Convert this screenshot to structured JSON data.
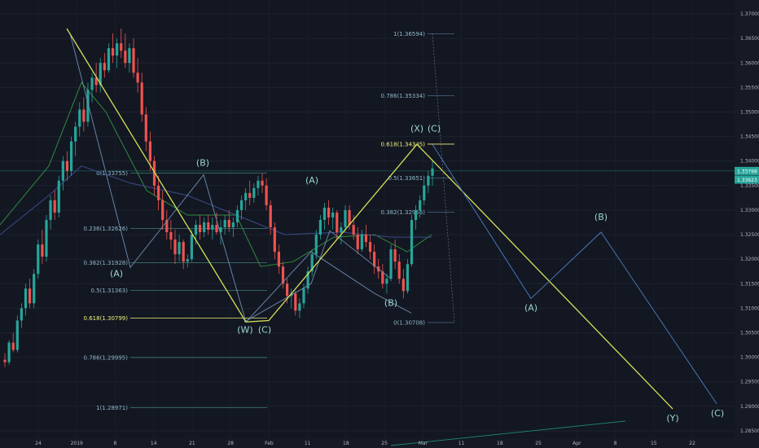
{
  "colors": {
    "background": "#131722",
    "up_candle": "#26a69a",
    "down_candle": "#ef5350",
    "wave_line": "#d4e157",
    "fib_line": "#5b8a8a",
    "fib_highlight": "#ecf17c",
    "projection_line": "#4a7fbf",
    "wave_label": "#9ad6d0",
    "ma_green": "#2e8b3e",
    "ma_blue": "#3b4a8c"
  },
  "chart_data": {
    "type": "candlestick",
    "instrument_note": "",
    "x_axis": {
      "tick_labels": [
        "24",
        "2019",
        "8",
        "14",
        "21",
        "28",
        "Feb",
        "11",
        "18",
        "25",
        "Mar",
        "11",
        "18",
        "25",
        "Apr",
        "8",
        "15",
        "22"
      ]
    },
    "y_axis": {
      "range": [
        1.2835,
        1.3715
      ],
      "tick_labels": [
        "1.37000",
        "1.36500",
        "1.36000",
        "1.35500",
        "1.35000",
        "1.34500",
        "1.34000",
        "1.33500",
        "1.33000",
        "1.32500",
        "1.32000",
        "1.31500",
        "1.31000",
        "1.30500",
        "1.30000",
        "1.29500",
        "1.29000",
        "1.28500"
      ],
      "tick_values": [
        1.37,
        1.365,
        1.36,
        1.355,
        1.35,
        1.345,
        1.34,
        1.335,
        1.33,
        1.325,
        1.32,
        1.315,
        1.31,
        1.305,
        1.3,
        1.295,
        1.29,
        1.285
      ]
    },
    "current_price_labels": [
      "1.33798",
      "1.33623"
    ],
    "candles": [
      [
        1.2995,
        1.3008,
        1.298,
        1.299
      ],
      [
        1.299,
        1.3035,
        1.2985,
        1.303
      ],
      [
        1.303,
        1.305,
        1.301,
        1.3015
      ],
      [
        1.3015,
        1.3085,
        1.301,
        1.3075
      ],
      [
        1.3075,
        1.311,
        1.306,
        1.31
      ],
      [
        1.31,
        1.315,
        1.3085,
        1.314
      ],
      [
        1.314,
        1.316,
        1.31,
        1.311
      ],
      [
        1.311,
        1.318,
        1.31,
        1.317
      ],
      [
        1.317,
        1.324,
        1.316,
        1.323
      ],
      [
        1.323,
        1.326,
        1.319,
        1.3205
      ],
      [
        1.3205,
        1.329,
        1.3195,
        1.328
      ],
      [
        1.328,
        1.333,
        1.326,
        1.332
      ],
      [
        1.332,
        1.334,
        1.328,
        1.3295
      ],
      [
        1.3295,
        1.337,
        1.3285,
        1.336
      ],
      [
        1.336,
        1.341,
        1.334,
        1.34
      ],
      [
        1.34,
        1.342,
        1.336,
        1.338
      ],
      [
        1.338,
        1.345,
        1.337,
        1.344
      ],
      [
        1.344,
        1.348,
        1.341,
        1.347
      ],
      [
        1.347,
        1.352,
        1.345,
        1.3505
      ],
      [
        1.3505,
        1.353,
        1.346,
        1.348
      ],
      [
        1.348,
        1.356,
        1.347,
        1.3545
      ],
      [
        1.3545,
        1.358,
        1.352,
        1.357
      ],
      [
        1.357,
        1.36,
        1.354,
        1.3555
      ],
      [
        1.3555,
        1.361,
        1.354,
        1.36
      ],
      [
        1.36,
        1.362,
        1.357,
        1.3585
      ],
      [
        1.3585,
        1.364,
        1.358,
        1.363
      ],
      [
        1.363,
        1.366,
        1.36,
        1.3615
      ],
      [
        1.3615,
        1.365,
        1.359,
        1.364
      ],
      [
        1.364,
        1.367,
        1.361,
        1.3625
      ],
      [
        1.3625,
        1.366,
        1.359,
        1.36
      ],
      [
        1.36,
        1.364,
        1.358,
        1.363
      ],
      [
        1.363,
        1.365,
        1.357,
        1.358
      ],
      [
        1.358,
        1.361,
        1.354,
        1.356
      ],
      [
        1.356,
        1.358,
        1.348,
        1.3495
      ],
      [
        1.3495,
        1.351,
        1.342,
        1.344
      ],
      [
        1.344,
        1.346,
        1.338,
        1.34
      ],
      [
        1.34,
        1.341,
        1.333,
        1.335
      ],
      [
        1.335,
        1.337,
        1.33,
        1.332
      ],
      [
        1.332,
        1.334,
        1.326,
        1.328
      ],
      [
        1.328,
        1.33,
        1.324,
        1.3255
      ],
      [
        1.3255,
        1.328,
        1.322,
        1.324
      ],
      [
        1.324,
        1.326,
        1.319,
        1.321
      ],
      [
        1.321,
        1.325,
        1.3195,
        1.3235
      ],
      [
        1.3235,
        1.324,
        1.318,
        1.3195
      ],
      [
        1.3195,
        1.321,
        1.3183,
        1.32
      ],
      [
        1.32,
        1.326,
        1.3195,
        1.325
      ],
      [
        1.325,
        1.328,
        1.323,
        1.327
      ],
      [
        1.327,
        1.329,
        1.324,
        1.3255
      ],
      [
        1.3255,
        1.3285,
        1.3245,
        1.3275
      ],
      [
        1.3275,
        1.329,
        1.325,
        1.326
      ],
      [
        1.326,
        1.3285,
        1.324,
        1.327
      ],
      [
        1.327,
        1.3295,
        1.325,
        1.3255
      ],
      [
        1.3255,
        1.328,
        1.323,
        1.3265
      ],
      [
        1.3265,
        1.329,
        1.325,
        1.328
      ],
      [
        1.328,
        1.33,
        1.3255,
        1.3265
      ],
      [
        1.3265,
        1.3285,
        1.3245,
        1.3275
      ],
      [
        1.3275,
        1.331,
        1.3265,
        1.33
      ],
      [
        1.33,
        1.333,
        1.328,
        1.332
      ],
      [
        1.332,
        1.3345,
        1.33,
        1.3335
      ],
      [
        1.3335,
        1.336,
        1.331,
        1.3325
      ],
      [
        1.3325,
        1.3355,
        1.3315,
        1.3345
      ],
      [
        1.3345,
        1.337,
        1.333,
        1.336
      ],
      [
        1.336,
        1.3375,
        1.3335,
        1.335
      ],
      [
        1.335,
        1.3365,
        1.33,
        1.331
      ],
      [
        1.331,
        1.332,
        1.325,
        1.3265
      ],
      [
        1.3265,
        1.3275,
        1.32,
        1.3215
      ],
      [
        1.3215,
        1.323,
        1.317,
        1.3185
      ],
      [
        1.3185,
        1.3195,
        1.314,
        1.315
      ],
      [
        1.315,
        1.316,
        1.311,
        1.3125
      ],
      [
        1.3125,
        1.314,
        1.31,
        1.313
      ],
      [
        1.313,
        1.3135,
        1.3085,
        1.3095
      ],
      [
        1.3095,
        1.312,
        1.308,
        1.311
      ],
      [
        1.311,
        1.315,
        1.31,
        1.314
      ],
      [
        1.314,
        1.3185,
        1.313,
        1.3175
      ],
      [
        1.3175,
        1.322,
        1.3165,
        1.321
      ],
      [
        1.321,
        1.326,
        1.32,
        1.325
      ],
      [
        1.325,
        1.329,
        1.324,
        1.328
      ],
      [
        1.328,
        1.3315,
        1.326,
        1.3305
      ],
      [
        1.3305,
        1.332,
        1.327,
        1.3285
      ],
      [
        1.3285,
        1.3305,
        1.326,
        1.3295
      ],
      [
        1.3295,
        1.33,
        1.324,
        1.3255
      ],
      [
        1.3255,
        1.3275,
        1.323,
        1.3265
      ],
      [
        1.3265,
        1.331,
        1.3255,
        1.33
      ],
      [
        1.33,
        1.331,
        1.326,
        1.327
      ],
      [
        1.327,
        1.329,
        1.324,
        1.325
      ],
      [
        1.325,
        1.3265,
        1.321,
        1.322
      ],
      [
        1.322,
        1.326,
        1.3215,
        1.325
      ],
      [
        1.325,
        1.327,
        1.3225,
        1.3235
      ],
      [
        1.3235,
        1.325,
        1.32,
        1.3215
      ],
      [
        1.3215,
        1.323,
        1.317,
        1.3185
      ],
      [
        1.3185,
        1.32,
        1.316,
        1.3175
      ],
      [
        1.3175,
        1.319,
        1.314,
        1.315
      ],
      [
        1.315,
        1.317,
        1.313,
        1.316
      ],
      [
        1.316,
        1.323,
        1.3155,
        1.322
      ],
      [
        1.322,
        1.324,
        1.318,
        1.3195
      ],
      [
        1.3195,
        1.321,
        1.315,
        1.316
      ],
      [
        1.316,
        1.318,
        1.312,
        1.3135
      ],
      [
        1.3135,
        1.32,
        1.313,
        1.319
      ],
      [
        1.319,
        1.329,
        1.3185,
        1.328
      ],
      [
        1.328,
        1.331,
        1.326,
        1.33
      ],
      [
        1.33,
        1.333,
        1.3285,
        1.332
      ],
      [
        1.332,
        1.336,
        1.331,
        1.335
      ],
      [
        1.335,
        1.338,
        1.3335,
        1.337
      ],
      [
        1.337,
        1.34,
        1.335,
        1.3385
      ]
    ],
    "candle_window": {
      "first_x": 6,
      "last_x": 531
    },
    "wave_lines": [
      {
        "points": [
          [
            82,
            1.367
          ],
          [
            302,
            1.3072
          ],
          [
            330,
            1.3075
          ],
          [
            512,
            1.3434
          ]
        ]
      },
      {
        "points": [
          [
            512,
            1.3434
          ],
          [
            826,
            1.2895
          ]
        ]
      }
    ],
    "structure_lines": [
      {
        "points": [
          [
            86,
            1.366
          ],
          [
            160,
            1.3183
          ],
          [
            250,
            1.3372
          ],
          [
            302,
            1.3072
          ]
        ]
      },
      {
        "points": [
          [
            302,
            1.3072
          ],
          [
            382,
            1.3215
          ],
          [
            460,
            1.313
          ],
          [
            505,
            1.309
          ]
        ]
      },
      {
        "points": [
          [
            300,
            1.3072
          ],
          [
            382,
            1.315
          ],
          [
            405,
            1.3258
          ],
          [
            480,
            1.316
          ]
        ]
      }
    ],
    "projection_lines": [
      {
        "points": [
          [
            531,
            1.3434
          ],
          [
            652,
            1.312
          ],
          [
            738,
            1.3255
          ],
          [
            880,
            1.2905
          ]
        ]
      }
    ],
    "trend_line": {
      "points": [
        [
          480,
          1.282
        ],
        [
          768,
          1.287
        ]
      ]
    },
    "wave_labels": [
      {
        "text": "(B)",
        "x": 249,
        "y": 1.339
      },
      {
        "text": "(A)",
        "x": 143,
        "y": 1.3165
      },
      {
        "text": "(W)",
        "x": 301,
        "y": 1.305
      },
      {
        "text": "(C)",
        "x": 325,
        "y": 1.305
      },
      {
        "text": "(A)",
        "x": 383,
        "y": 1.3355
      },
      {
        "text": "(B)",
        "x": 480,
        "y": 1.3105
      },
      {
        "text": "(X)",
        "x": 512,
        "y": 1.346
      },
      {
        "text": "(C)",
        "x": 533,
        "y": 1.346
      },
      {
        "text": "(A)",
        "x": 652,
        "y": 1.3095
      },
      {
        "text": "(B)",
        "x": 738,
        "y": 1.328
      },
      {
        "text": "(Y)",
        "x": 826,
        "y": 1.287
      },
      {
        "text": "(C)",
        "x": 881,
        "y": 1.288
      }
    ],
    "fib_set_1": {
      "x_start": 160,
      "x_end": 328,
      "levels": [
        {
          "label": "0(1.33755)",
          "value": 1.33755,
          "highlight": false
        },
        {
          "label": "0.236(1.32626)",
          "value": 1.32626,
          "highlight": false
        },
        {
          "label": "0.382(1.31928)",
          "value": 1.31928,
          "highlight": false
        },
        {
          "label": "0.5(1.31363)",
          "value": 1.31363,
          "highlight": false
        },
        {
          "label": "0.618(1.30799)",
          "value": 1.30799,
          "highlight": true
        },
        {
          "label": "0.786(1.29995)",
          "value": 1.29995,
          "highlight": false
        },
        {
          "label": "1(1.28971)",
          "value": 1.28971,
          "highlight": false
        }
      ]
    },
    "fib_set_2": {
      "x_start": 525,
      "x_end": 558,
      "levels": [
        {
          "label": "1(1.36594)",
          "value": 1.36594,
          "highlight": false
        },
        {
          "label": "0.786(1.35334)",
          "value": 1.35334,
          "highlight": false
        },
        {
          "label": "0.618(1.34345)",
          "value": 1.34345,
          "highlight": true
        },
        {
          "label": "0.5(1.33651)",
          "value": 1.33651,
          "highlight": false
        },
        {
          "label": "0.382(1.32956)",
          "value": 1.32956,
          "highlight": false
        },
        {
          "label": "0(1.30708)",
          "value": 1.30708,
          "highlight": false
        }
      ]
    },
    "moving_averages": [
      {
        "color": "ma_green",
        "points": [
          [
            0,
            1.327
          ],
          [
            60,
            1.339
          ],
          [
            100,
            1.356
          ],
          [
            130,
            1.35
          ],
          [
            180,
            1.334
          ],
          [
            230,
            1.329
          ],
          [
            290,
            1.329
          ],
          [
            320,
            1.3185
          ],
          [
            360,
            1.3195
          ],
          [
            410,
            1.3245
          ],
          [
            460,
            1.325
          ],
          [
            500,
            1.3215
          ],
          [
            530,
            1.325
          ]
        ]
      },
      {
        "color": "ma_blue",
        "points": [
          [
            0,
            1.325
          ],
          [
            60,
            1.333
          ],
          [
            100,
            1.339
          ],
          [
            160,
            1.3355
          ],
          [
            230,
            1.333
          ],
          [
            290,
            1.329
          ],
          [
            350,
            1.325
          ],
          [
            420,
            1.3255
          ],
          [
            480,
            1.3245
          ],
          [
            530,
            1.3245
          ]
        ]
      }
    ]
  }
}
